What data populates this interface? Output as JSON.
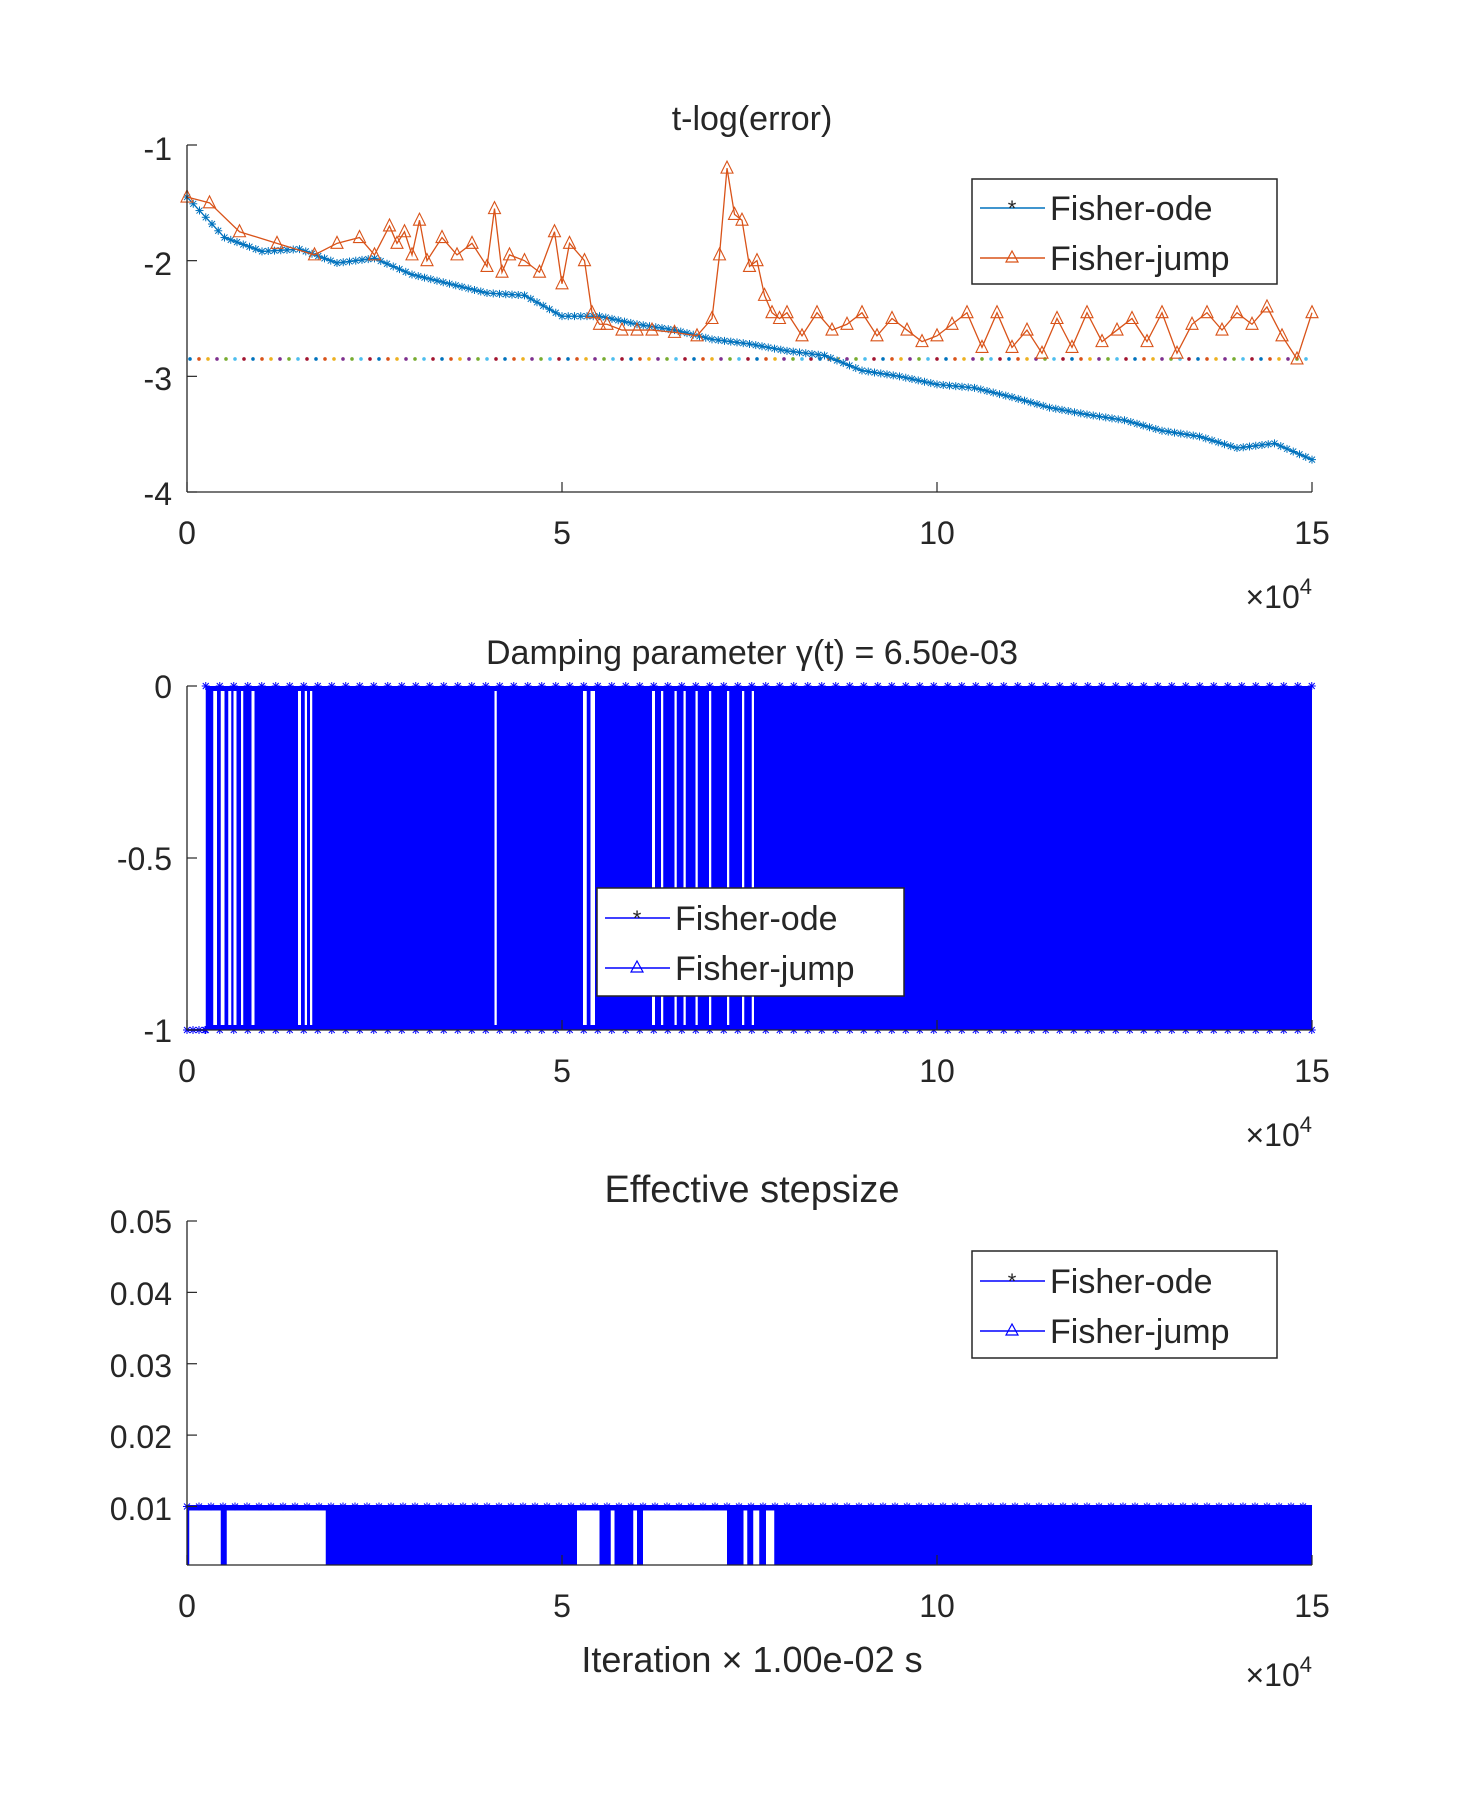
{
  "colors": {
    "ode_top": "#0072BD",
    "jump_top": "#D95319",
    "blue": "#0000FF",
    "axis": "#262626",
    "threshold_dots": [
      "#0072BD",
      "#D95319",
      "#EDB120",
      "#7E2F8E",
      "#77AC30",
      "#4DBEEE",
      "#A2142F"
    ]
  },
  "chart_data": [
    {
      "type": "line",
      "title": "t-log(error)",
      "xlim": [
        0,
        150000
      ],
      "ylim": [
        -4,
        -1
      ],
      "xticks": [
        "0",
        "5",
        "10",
        "15"
      ],
      "yticks": [
        "-1",
        "-2",
        "-3",
        "-4"
      ],
      "x_exponent": {
        "base": "×10",
        "power": "4"
      },
      "xlabel": "",
      "legend": {
        "position": "top-right",
        "entries": [
          "Fisher-ode",
          "Fisher-jump"
        ]
      },
      "threshold": -2.85,
      "series": [
        {
          "name": "Fisher-ode",
          "marker": "star",
          "x": [
            0,
            5000,
            10000,
            15000,
            20000,
            25000,
            30000,
            35000,
            40000,
            45000,
            50000,
            55000,
            60000,
            65000,
            70000,
            75000,
            80000,
            85000,
            90000,
            95000,
            100000,
            105000,
            110000,
            115000,
            120000,
            125000,
            130000,
            135000,
            140000,
            145000,
            150000
          ],
          "values": [
            -1.45,
            -1.8,
            -1.92,
            -1.9,
            -2.02,
            -1.98,
            -2.12,
            -2.2,
            -2.28,
            -2.3,
            -2.48,
            -2.48,
            -2.55,
            -2.6,
            -2.68,
            -2.72,
            -2.78,
            -2.82,
            -2.95,
            -3.0,
            -3.07,
            -3.1,
            -3.18,
            -3.27,
            -3.33,
            -3.38,
            -3.47,
            -3.52,
            -3.62,
            -3.58,
            -3.72
          ]
        },
        {
          "name": "Fisher-jump",
          "marker": "triangle",
          "x": [
            0,
            3000,
            7000,
            12000,
            17000,
            20000,
            23000,
            25000,
            27000,
            28000,
            29000,
            30000,
            31000,
            32000,
            34000,
            36000,
            38000,
            40000,
            41000,
            42000,
            43000,
            45000,
            47000,
            49000,
            50000,
            51000,
            53000,
            54000,
            55000,
            56000,
            58000,
            60000,
            62000,
            65000,
            68000,
            70000,
            71000,
            72000,
            73000,
            74000,
            75000,
            76000,
            77000,
            78000,
            79000,
            80000,
            82000,
            84000,
            86000,
            88000,
            90000,
            92000,
            94000,
            96000,
            98000,
            100000,
            102000,
            104000,
            106000,
            108000,
            110000,
            112000,
            114000,
            116000,
            118000,
            120000,
            122000,
            124000,
            126000,
            128000,
            130000,
            132000,
            134000,
            136000,
            138000,
            140000,
            142000,
            144000,
            146000,
            148000,
            150000
          ],
          "values": [
            -1.45,
            -1.5,
            -1.75,
            -1.85,
            -1.95,
            -1.85,
            -1.8,
            -1.95,
            -1.7,
            -1.85,
            -1.75,
            -1.95,
            -1.65,
            -2.0,
            -1.8,
            -1.95,
            -1.85,
            -2.05,
            -1.55,
            -2.1,
            -1.95,
            -2.0,
            -2.1,
            -1.75,
            -2.2,
            -1.85,
            -2.0,
            -2.45,
            -2.55,
            -2.55,
            -2.6,
            -2.6,
            -2.6,
            -2.62,
            -2.65,
            -2.5,
            -1.95,
            -1.2,
            -1.6,
            -1.65,
            -2.05,
            -2.0,
            -2.3,
            -2.45,
            -2.5,
            -2.45,
            -2.65,
            -2.45,
            -2.6,
            -2.55,
            -2.45,
            -2.65,
            -2.5,
            -2.6,
            -2.7,
            -2.65,
            -2.55,
            -2.45,
            -2.75,
            -2.45,
            -2.75,
            -2.6,
            -2.8,
            -2.5,
            -2.75,
            -2.45,
            -2.7,
            -2.6,
            -2.5,
            -2.7,
            -2.45,
            -2.8,
            -2.55,
            -2.45,
            -2.6,
            -2.45,
            -2.55,
            -2.4,
            -2.65,
            -2.85,
            -2.45
          ]
        }
      ]
    },
    {
      "type": "line",
      "title": "Damping parameter γ(t) = 6.50e-03",
      "xlim": [
        0,
        150000
      ],
      "ylim": [
        -1,
        0
      ],
      "xticks": [
        "0",
        "5",
        "10",
        "15"
      ],
      "yticks": [
        "0",
        "-0.5",
        "-1"
      ],
      "x_exponent": {
        "base": "×10",
        "power": "4"
      },
      "xlabel": "",
      "legend": {
        "position": "center",
        "entries": [
          "Fisher-ode",
          "Fisher-jump"
        ]
      },
      "levels": [
        0,
        -1
      ],
      "constant_low_until": 2500,
      "gaps": [
        [
          3500,
          4000
        ],
        [
          4500,
          5000
        ],
        [
          5500,
          5900
        ],
        [
          6200,
          6600
        ],
        [
          7200,
          7500
        ],
        [
          8600,
          9000
        ],
        [
          14800,
          15200
        ],
        [
          15700,
          16000
        ],
        [
          16400,
          16700
        ],
        [
          41000,
          41300
        ],
        [
          52800,
          53300
        ],
        [
          53800,
          54400
        ],
        [
          62000,
          62400
        ],
        [
          63200,
          63500
        ],
        [
          65000,
          65300
        ],
        [
          66200,
          66500
        ],
        [
          67800,
          68100
        ],
        [
          69600,
          69900
        ],
        [
          72000,
          72300
        ],
        [
          74000,
          74300
        ],
        [
          75300,
          75600
        ]
      ]
    },
    {
      "type": "line",
      "title": "Effective stepsize",
      "xlim": [
        0,
        150000
      ],
      "ylim": [
        0.0018,
        0.05
      ],
      "xticks": [
        "0",
        "5",
        "10",
        "15"
      ],
      "yticks": [
        "0.05",
        "0.04",
        "0.03",
        "0.02",
        "0.01"
      ],
      "x_exponent": {
        "base": "×10",
        "power": "4"
      },
      "xlabel": "Iteration × 1.00e-02 s",
      "legend": {
        "position": "top-right",
        "entries": [
          "Fisher-ode",
          "Fisher-jump"
        ]
      },
      "levels": [
        0.01,
        0.0018
      ],
      "gaps": [
        [
          300,
          4500
        ],
        [
          5300,
          18500
        ],
        [
          52000,
          55000
        ],
        [
          56500,
          57000
        ],
        [
          59500,
          60000
        ],
        [
          60800,
          72000
        ],
        [
          74200,
          74700
        ],
        [
          75500,
          76300
        ],
        [
          77200,
          78300
        ]
      ]
    }
  ]
}
